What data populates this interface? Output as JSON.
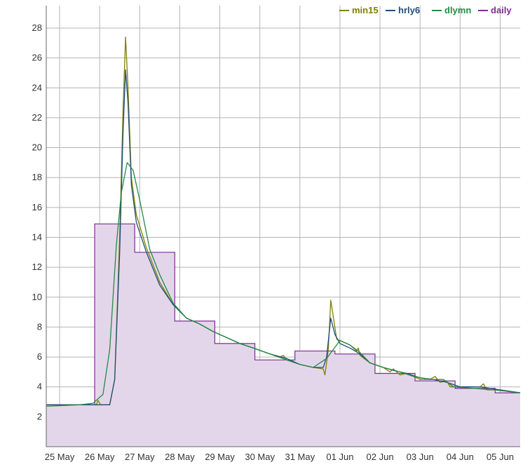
{
  "chart_data": {
    "type": "line",
    "title": "",
    "xlabel": "",
    "ylabel": "",
    "ylim": [
      0,
      29.5
    ],
    "yticks": [
      2,
      4,
      6,
      8,
      10,
      12,
      14,
      16,
      18,
      20,
      22,
      24,
      26,
      28
    ],
    "xlim": [
      "2024-05-24T16:00",
      "2024-06-05T12:00"
    ],
    "xticks": [
      {
        "date": "2024-05-25",
        "label": "25 May"
      },
      {
        "date": "2024-05-26",
        "label": "26 May"
      },
      {
        "date": "2024-05-27",
        "label": "27 May"
      },
      {
        "date": "2024-05-28",
        "label": "28 May"
      },
      {
        "date": "2024-05-29",
        "label": "29 May"
      },
      {
        "date": "2024-05-30",
        "label": "30 May"
      },
      {
        "date": "2024-05-31",
        "label": "31 May"
      },
      {
        "date": "2024-06-01",
        "label": "01 Jun"
      },
      {
        "date": "2024-06-02",
        "label": "02 Jun"
      },
      {
        "date": "2024-06-03",
        "label": "03 Jun"
      },
      {
        "date": "2024-06-04",
        "label": "04 Jun"
      },
      {
        "date": "2024-06-05",
        "label": "05 Jun"
      }
    ],
    "grid": true,
    "legend_position": "top-right",
    "series": [
      {
        "name": "min15",
        "color": "#808000",
        "style": "line",
        "points": [
          [
            "2024-05-24T16:00",
            2.8
          ],
          [
            "2024-05-25T12:00",
            2.8
          ],
          [
            "2024-05-25T22:00",
            2.8
          ],
          [
            "2024-05-25T23:00",
            3.1
          ],
          [
            "2024-05-26T00:30",
            2.8
          ],
          [
            "2024-05-26T06:00",
            2.8
          ],
          [
            "2024-05-26T09:00",
            4.5
          ],
          [
            "2024-05-26T12:00",
            14.0
          ],
          [
            "2024-05-26T14:00",
            22.5
          ],
          [
            "2024-05-26T15:30",
            27.4
          ],
          [
            "2024-05-26T17:00",
            24.0
          ],
          [
            "2024-05-26T19:00",
            18.0
          ],
          [
            "2024-05-26T22:00",
            15.5
          ],
          [
            "2024-05-27T04:00",
            13.3
          ],
          [
            "2024-05-27T12:00",
            11.0
          ],
          [
            "2024-05-27T20:00",
            9.5
          ],
          [
            "2024-05-28T04:00",
            8.6
          ],
          [
            "2024-05-28T12:00",
            8.2
          ],
          [
            "2024-05-28T20:00",
            7.7
          ],
          [
            "2024-05-29T04:00",
            7.3
          ],
          [
            "2024-05-29T12:00",
            6.9
          ],
          [
            "2024-05-29T20:00",
            6.6
          ],
          [
            "2024-05-30T06:00",
            6.2
          ],
          [
            "2024-05-30T12:00",
            6.0
          ],
          [
            "2024-05-30T14:00",
            6.1
          ],
          [
            "2024-05-30T16:00",
            5.8
          ],
          [
            "2024-05-31T00:00",
            5.5
          ],
          [
            "2024-05-31T08:00",
            5.3
          ],
          [
            "2024-05-31T14:00",
            5.2
          ],
          [
            "2024-05-31T15:00",
            4.8
          ],
          [
            "2024-05-31T17:00",
            6.5
          ],
          [
            "2024-05-31T18:30",
            9.8
          ],
          [
            "2024-05-31T20:00",
            8.7
          ],
          [
            "2024-05-31T22:00",
            7.2
          ],
          [
            "2024-06-01T06:00",
            6.8
          ],
          [
            "2024-06-01T10:00",
            6.4
          ],
          [
            "2024-06-01T11:00",
            6.6
          ],
          [
            "2024-06-01T12:00",
            6.1
          ],
          [
            "2024-06-01T18:00",
            5.6
          ],
          [
            "2024-06-02T02:00",
            5.3
          ],
          [
            "2024-06-02T06:00",
            5.0
          ],
          [
            "2024-06-02T08:00",
            5.2
          ],
          [
            "2024-06-02T12:00",
            4.8
          ],
          [
            "2024-06-02T16:00",
            4.9
          ],
          [
            "2024-06-02T20:00",
            4.7
          ],
          [
            "2024-06-03T00:00",
            4.5
          ],
          [
            "2024-06-03T06:00",
            4.5
          ],
          [
            "2024-06-03T09:00",
            4.7
          ],
          [
            "2024-06-03T12:00",
            4.3
          ],
          [
            "2024-06-03T16:00",
            4.4
          ],
          [
            "2024-06-03T18:00",
            4.0
          ],
          [
            "2024-06-04T00:00",
            4.0
          ],
          [
            "2024-06-04T12:00",
            4.0
          ],
          [
            "2024-06-04T14:00",
            4.2
          ],
          [
            "2024-06-04T16:00",
            3.8
          ],
          [
            "2024-06-05T00:00",
            3.8
          ],
          [
            "2024-06-05T12:00",
            3.6
          ]
        ]
      },
      {
        "name": "hrly6",
        "color": "#1f4e79",
        "style": "line",
        "points": [
          [
            "2024-05-24T16:00",
            2.8
          ],
          [
            "2024-05-25T12:00",
            2.8
          ],
          [
            "2024-05-26T00:00",
            2.8
          ],
          [
            "2024-05-26T06:00",
            2.8
          ],
          [
            "2024-05-26T09:00",
            4.5
          ],
          [
            "2024-05-26T12:00",
            13.0
          ],
          [
            "2024-05-26T14:00",
            21.0
          ],
          [
            "2024-05-26T15:30",
            25.2
          ],
          [
            "2024-05-26T17:00",
            23.0
          ],
          [
            "2024-05-26T19:00",
            17.5
          ],
          [
            "2024-05-26T22:00",
            15.0
          ],
          [
            "2024-05-27T04:00",
            13.0
          ],
          [
            "2024-05-27T12:00",
            10.8
          ],
          [
            "2024-05-27T20:00",
            9.5
          ],
          [
            "2024-05-28T04:00",
            8.6
          ],
          [
            "2024-05-28T12:00",
            8.2
          ],
          [
            "2024-05-28T20:00",
            7.7
          ],
          [
            "2024-05-29T04:00",
            7.3
          ],
          [
            "2024-05-29T12:00",
            6.9
          ],
          [
            "2024-05-29T20:00",
            6.6
          ],
          [
            "2024-05-30T06:00",
            6.2
          ],
          [
            "2024-05-30T16:00",
            5.9
          ],
          [
            "2024-05-31T00:00",
            5.5
          ],
          [
            "2024-05-31T08:00",
            5.3
          ],
          [
            "2024-05-31T14:00",
            5.3
          ],
          [
            "2024-05-31T16:00",
            6.0
          ],
          [
            "2024-05-31T18:30",
            8.6
          ],
          [
            "2024-05-31T21:00",
            7.5
          ],
          [
            "2024-06-01T00:00",
            6.9
          ],
          [
            "2024-06-01T06:00",
            6.6
          ],
          [
            "2024-06-01T12:00",
            6.2
          ],
          [
            "2024-06-01T18:00",
            5.6
          ],
          [
            "2024-06-02T02:00",
            5.3
          ],
          [
            "2024-06-02T08:00",
            5.1
          ],
          [
            "2024-06-02T16:00",
            4.9
          ],
          [
            "2024-06-03T00:00",
            4.6
          ],
          [
            "2024-06-03T08:00",
            4.5
          ],
          [
            "2024-06-03T16:00",
            4.3
          ],
          [
            "2024-06-04T00:00",
            4.0
          ],
          [
            "2024-06-04T12:00",
            4.0
          ],
          [
            "2024-06-05T00:00",
            3.8
          ],
          [
            "2024-06-05T12:00",
            3.6
          ]
        ]
      },
      {
        "name": "dlymn",
        "color": "#228b45",
        "style": "line",
        "points": [
          [
            "2024-05-24T16:00",
            2.7
          ],
          [
            "2024-05-25T12:00",
            2.8
          ],
          [
            "2024-05-25T20:00",
            2.9
          ],
          [
            "2024-05-26T02:00",
            3.5
          ],
          [
            "2024-05-26T06:00",
            6.5
          ],
          [
            "2024-05-26T10:00",
            13.5
          ],
          [
            "2024-05-26T13:00",
            17.0
          ],
          [
            "2024-05-26T16:30",
            19.0
          ],
          [
            "2024-05-26T20:00",
            18.5
          ],
          [
            "2024-05-27T00:00",
            16.5
          ],
          [
            "2024-05-27T06:00",
            13.2
          ],
          [
            "2024-05-27T12:00",
            11.5
          ],
          [
            "2024-05-27T20:00",
            9.6
          ],
          [
            "2024-05-28T04:00",
            8.6
          ],
          [
            "2024-05-28T12:00",
            8.2
          ],
          [
            "2024-05-28T20:00",
            7.7
          ],
          [
            "2024-05-29T04:00",
            7.3
          ],
          [
            "2024-05-29T12:00",
            6.9
          ],
          [
            "2024-05-29T20:00",
            6.6
          ],
          [
            "2024-05-30T06:00",
            6.2
          ],
          [
            "2024-05-30T16:00",
            5.8
          ],
          [
            "2024-05-31T00:00",
            5.5
          ],
          [
            "2024-05-31T08:00",
            5.3
          ],
          [
            "2024-05-31T16:00",
            5.9
          ],
          [
            "2024-06-01T00:00",
            7.1
          ],
          [
            "2024-06-01T06:00",
            6.8
          ],
          [
            "2024-06-01T12:00",
            6.3
          ],
          [
            "2024-06-01T18:00",
            5.6
          ],
          [
            "2024-06-02T02:00",
            5.3
          ],
          [
            "2024-06-02T12:00",
            5.0
          ],
          [
            "2024-06-02T20:00",
            4.7
          ],
          [
            "2024-06-03T06:00",
            4.5
          ],
          [
            "2024-06-03T14:00",
            4.5
          ],
          [
            "2024-06-03T20:00",
            4.0
          ],
          [
            "2024-06-04T08:00",
            3.9
          ],
          [
            "2024-06-04T20:00",
            3.8
          ],
          [
            "2024-06-05T12:00",
            3.6
          ]
        ]
      },
      {
        "name": "daily",
        "color": "#7b2d8e",
        "fill": "#e4d6ea",
        "style": "step",
        "steps": [
          {
            "start": "2024-05-24T16:00",
            "end": "2024-05-25T21:00",
            "value": 2.8
          },
          {
            "start": "2024-05-25T21:00",
            "end": "2024-05-26T21:00",
            "value": 14.9
          },
          {
            "start": "2024-05-26T21:00",
            "end": "2024-05-27T21:00",
            "value": 13.0
          },
          {
            "start": "2024-05-27T21:00",
            "end": "2024-05-28T21:00",
            "value": 8.4
          },
          {
            "start": "2024-05-28T21:00",
            "end": "2024-05-29T21:00",
            "value": 6.9
          },
          {
            "start": "2024-05-29T21:00",
            "end": "2024-05-30T21:00",
            "value": 5.8
          },
          {
            "start": "2024-05-30T21:00",
            "end": "2024-05-31T21:00",
            "value": 6.4
          },
          {
            "start": "2024-05-31T21:00",
            "end": "2024-06-01T21:00",
            "value": 6.2
          },
          {
            "start": "2024-06-01T21:00",
            "end": "2024-06-02T21:00",
            "value": 4.9
          },
          {
            "start": "2024-06-02T21:00",
            "end": "2024-06-03T21:00",
            "value": 4.4
          },
          {
            "start": "2024-06-03T21:00",
            "end": "2024-06-04T21:00",
            "value": 3.9
          },
          {
            "start": "2024-06-04T21:00",
            "end": "2024-06-05T12:00",
            "value": 3.6
          }
        ]
      }
    ]
  }
}
